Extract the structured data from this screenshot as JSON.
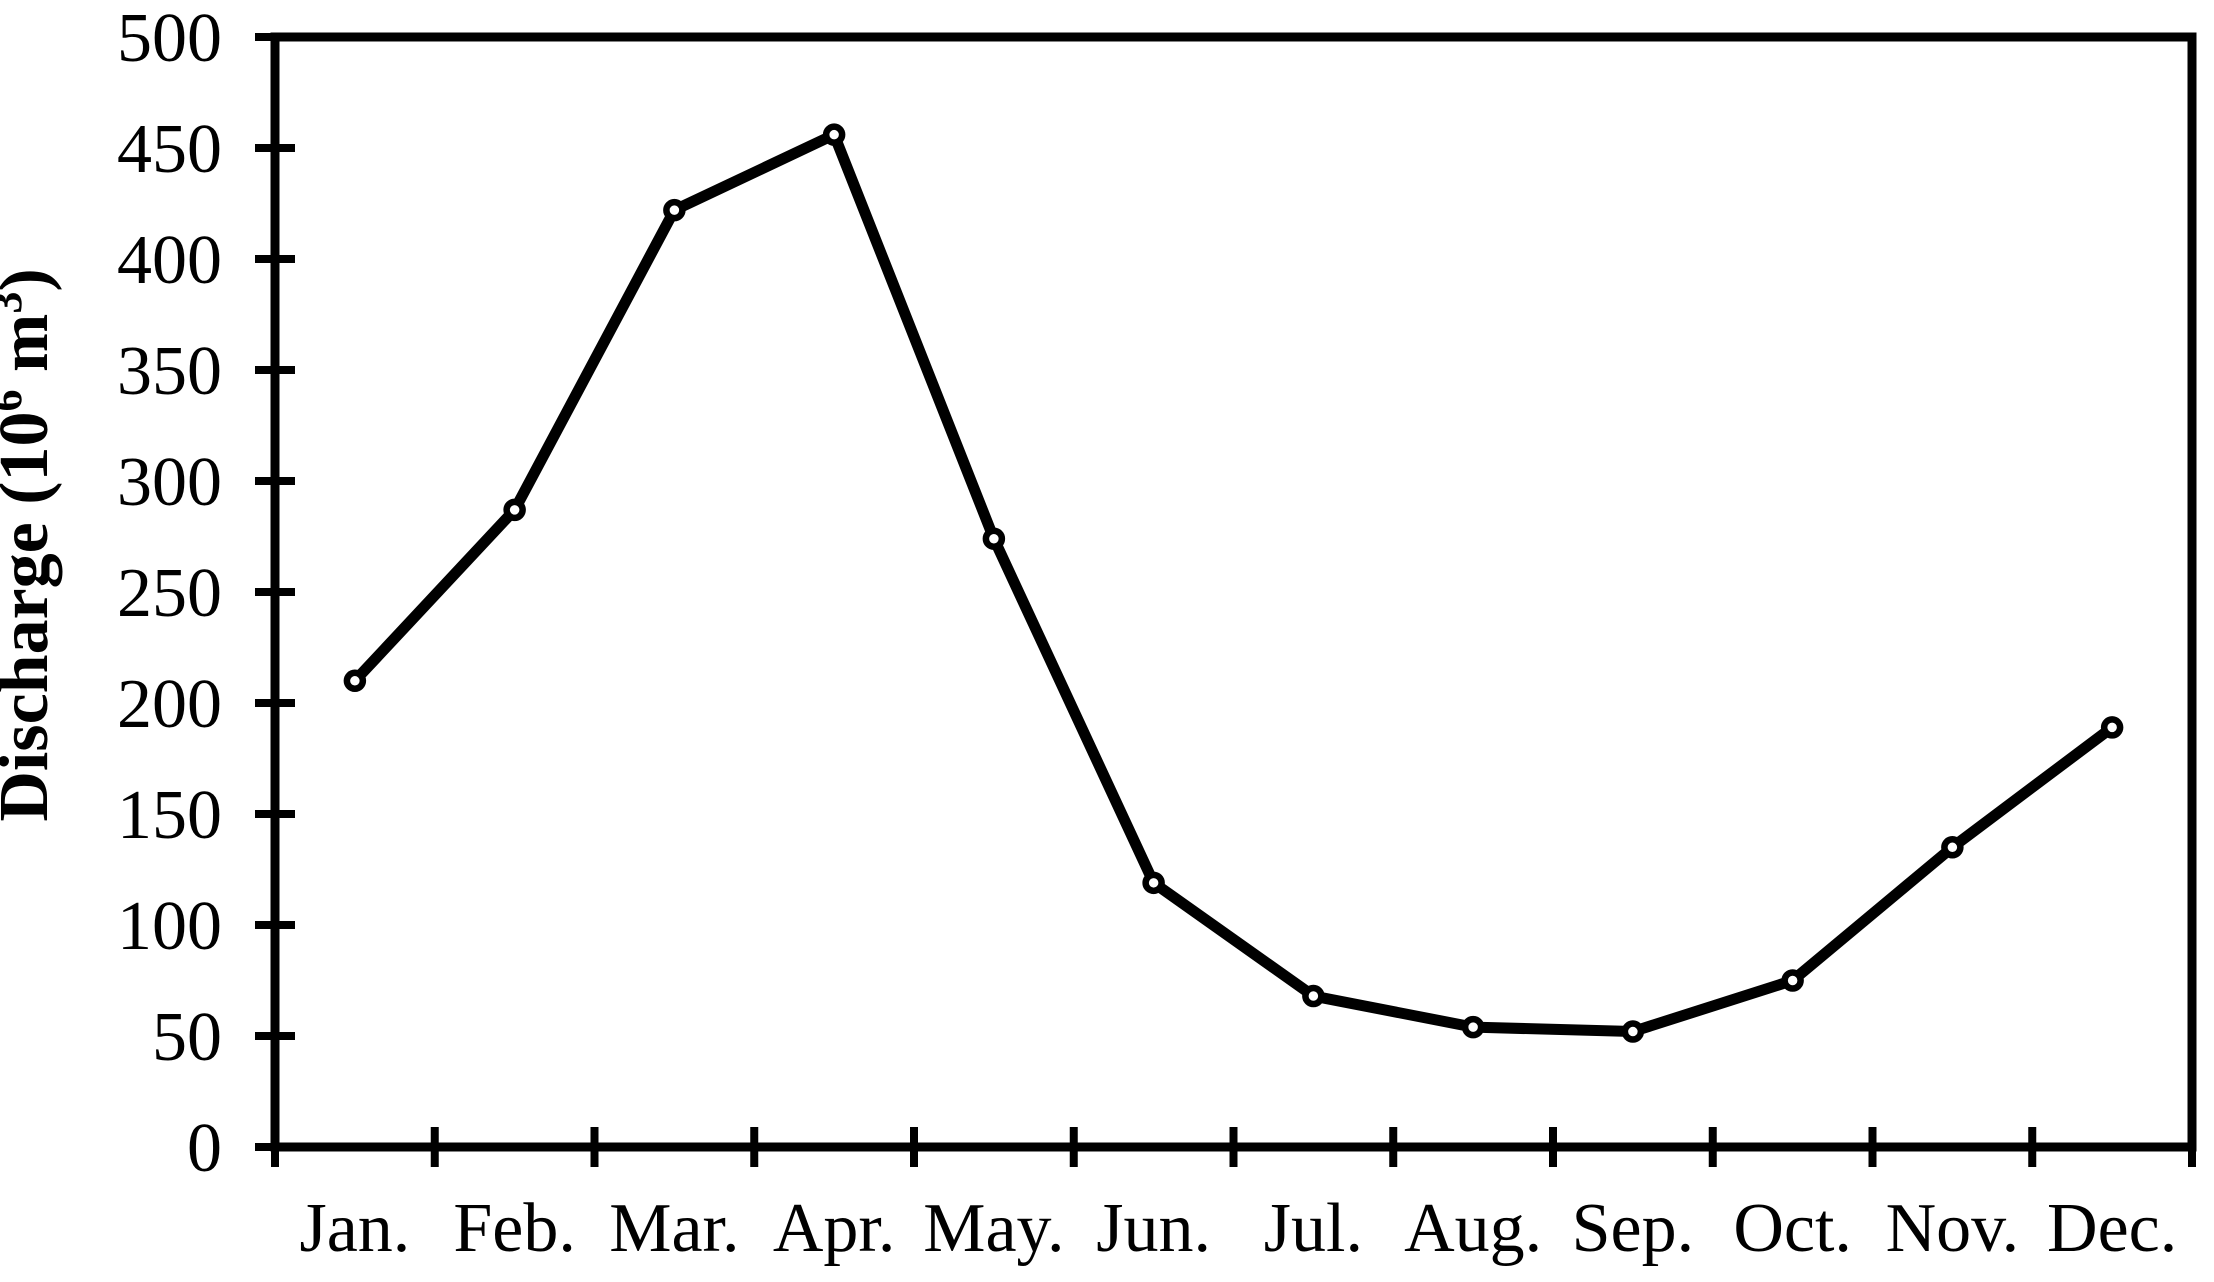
{
  "chart_data": {
    "type": "line",
    "title": "",
    "xlabel": "",
    "ylabel": "Discharge (10⁶ m³)",
    "ylabel_parts": [
      {
        "text": "Discharge (10"
      },
      {
        "text": "6",
        "superscript": true
      },
      {
        "text": " m"
      },
      {
        "text": "3",
        "superscript": true
      },
      {
        "text": ")"
      }
    ],
    "categories": [
      "Jan.",
      "Feb.",
      "Mar.",
      "Apr.",
      "May.",
      "Jun.",
      "Jul.",
      "Aug.",
      "Sep.",
      "Oct.",
      "Nov.",
      "Dec."
    ],
    "series": [
      {
        "name": "Discharge",
        "values": [
          210,
          287,
          422,
          456,
          274,
          119,
          68,
          54,
          52,
          75,
          135,
          189
        ]
      }
    ],
    "ylim": [
      0,
      500
    ],
    "yticks": [
      0,
      50,
      100,
      150,
      200,
      250,
      300,
      350,
      400,
      450,
      500
    ],
    "grid": false,
    "legend_position": "none",
    "marker_style": "open-circle",
    "line_color": "#000000",
    "marker_fill": "#ffffff",
    "text_color": "#000000",
    "background_color": "#ffffff"
  }
}
